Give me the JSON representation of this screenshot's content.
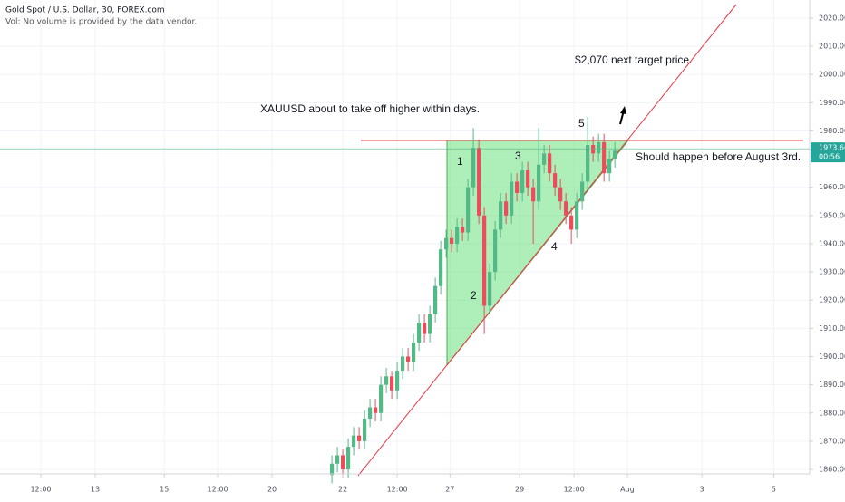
{
  "chart_data": {
    "type": "candlestick",
    "title": "Gold Spot / U.S. Dollar, 30, FOREX.com",
    "subtitle": "Vol: No volume is provided by the data vendor.",
    "annotations": [
      "XAUUSD about to take off higher within days.",
      "$2,070 next target price.",
      "Should happen before August 3rd.",
      "1",
      "2",
      "3",
      "4",
      "5"
    ],
    "last_price": 1973.66,
    "countdown": "00:56",
    "up_color": "#53b987",
    "down_color": "#eb4d5c",
    "grid": true,
    "xlim": [
      0,
      148.8
    ],
    "xticks": [
      {
        "value": 7.5,
        "label": "12:00"
      },
      {
        "value": 17.5,
        "label": "13"
      },
      {
        "value": 30.2,
        "label": "15"
      },
      {
        "value": 40,
        "label": "12:00"
      },
      {
        "value": 50,
        "label": "20"
      },
      {
        "value": 63,
        "label": "22"
      },
      {
        "value": 73,
        "label": "12:00"
      },
      {
        "value": 82.7,
        "label": "27"
      },
      {
        "value": 95.5,
        "label": "29"
      },
      {
        "value": 105.5,
        "label": "12:00"
      },
      {
        "value": 115.3,
        "label": "Aug"
      },
      {
        "value": 129,
        "label": "3"
      },
      {
        "value": 142.2,
        "label": "5"
      }
    ],
    "ylim": [
      1858.4,
      2026.4
    ],
    "yticks": [
      {
        "value": 1860,
        "label": "1860.00"
      },
      {
        "value": 1870,
        "label": "1870.00"
      },
      {
        "value": 1880,
        "label": "1880.00"
      },
      {
        "value": 1890,
        "label": "1890.00"
      },
      {
        "value": 1900,
        "label": "1900.00"
      },
      {
        "value": 1910,
        "label": "1910.00"
      },
      {
        "value": 1920,
        "label": "1920.00"
      },
      {
        "value": 1930,
        "label": "1930.00"
      },
      {
        "value": 1940,
        "label": "1940.00"
      },
      {
        "value": 1950,
        "label": "1950.00"
      },
      {
        "value": 1960,
        "label": "1960.00"
      },
      {
        "value": 1970,
        "label": "1970.00"
      },
      {
        "value": 1980,
        "label": "1980.00"
      },
      {
        "value": 1990,
        "label": "1990.00"
      },
      {
        "value": 2000,
        "label": "2000.00"
      },
      {
        "value": 2010,
        "label": "2010.00"
      },
      {
        "value": 2020,
        "label": "2020.00"
      }
    ],
    "x": [
      61,
      62,
      63,
      64,
      65,
      66,
      67,
      68,
      69,
      70,
      71,
      72,
      73,
      74,
      75,
      76,
      77,
      78,
      79,
      80,
      81,
      82,
      83,
      84,
      85,
      86,
      87,
      88,
      89,
      90,
      91,
      92,
      93,
      94,
      95,
      96,
      97,
      98,
      99,
      100,
      101,
      102,
      103,
      104,
      105,
      106,
      107,
      108,
      109,
      110,
      111,
      112,
      113
    ],
    "open": [
      1858,
      1862,
      1865,
      1860,
      1868,
      1872,
      1870,
      1878,
      1882,
      1880,
      1890,
      1893,
      1888,
      1895,
      1900,
      1898,
      1905,
      1912,
      1908,
      1915,
      1925,
      1938,
      1942,
      1940,
      1946,
      1944,
      1960,
      1974,
      1950,
      1918,
      1930,
      1945,
      1955,
      1950,
      1962,
      1958,
      1966,
      1960,
      1955,
      1968,
      1972,
      1965,
      1960,
      1955,
      1950,
      1945,
      1955,
      1962,
      1975,
      1972,
      1976,
      1965,
      1970
    ],
    "close": [
      1862,
      1865,
      1860,
      1868,
      1872,
      1870,
      1878,
      1882,
      1880,
      1890,
      1893,
      1888,
      1895,
      1900,
      1898,
      1905,
      1912,
      1908,
      1915,
      1925,
      1938,
      1942,
      1940,
      1946,
      1944,
      1960,
      1974,
      1950,
      1918,
      1930,
      1945,
      1955,
      1950,
      1962,
      1958,
      1966,
      1960,
      1955,
      1968,
      1972,
      1965,
      1960,
      1955,
      1950,
      1945,
      1955,
      1962,
      1975,
      1972,
      1976,
      1965,
      1970,
      1973
    ],
    "high": [
      1865,
      1868,
      1867,
      1871,
      1875,
      1875,
      1881,
      1885,
      1885,
      1893,
      1896,
      1895,
      1898,
      1903,
      1903,
      1908,
      1915,
      1915,
      1918,
      1928,
      1941,
      1945,
      1945,
      1949,
      1949,
      1963,
      1981,
      1977,
      1953,
      1933,
      1948,
      1958,
      1958,
      1965,
      1965,
      1969,
      1969,
      1963,
      1981,
      1975,
      1975,
      1968,
      1963,
      1958,
      1953,
      1958,
      1965,
      1985,
      1978,
      1979,
      1979,
      1973,
      1976
    ],
    "low": [
      1855,
      1859,
      1857,
      1857,
      1865,
      1867,
      1867,
      1875,
      1877,
      1877,
      1887,
      1885,
      1885,
      1892,
      1895,
      1895,
      1902,
      1905,
      1905,
      1912,
      1922,
      1935,
      1937,
      1937,
      1941,
      1941,
      1957,
      1947,
      1908,
      1915,
      1927,
      1942,
      1947,
      1947,
      1955,
      1955,
      1957,
      1940,
      1952,
      1965,
      1962,
      1957,
      1952,
      1947,
      1940,
      1942,
      1952,
      1959,
      1969,
      1969,
      1962,
      1962,
      1967
    ]
  }
}
